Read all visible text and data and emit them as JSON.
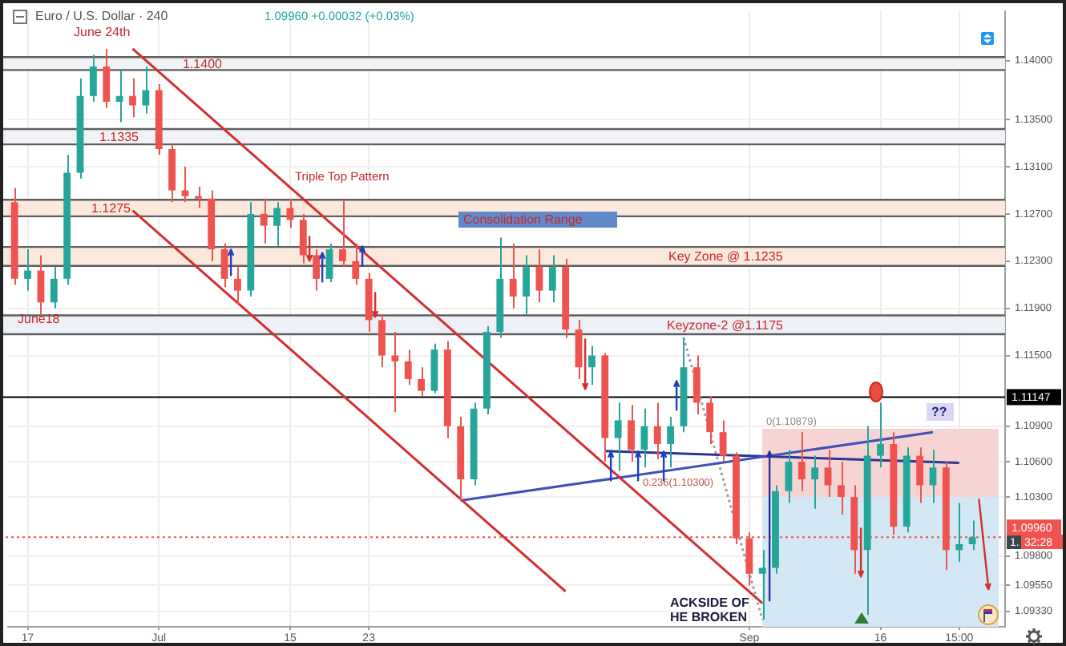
{
  "chart_data": {
    "type": "candlestick",
    "title": "Euro / U.S. Dollar · 240",
    "subtitle": "1.09960 +0.00032 (+0.03%)",
    "categories": [
      null,
      "17",
      null,
      null,
      null,
      null,
      null,
      null,
      null,
      null,
      null,
      "Jul",
      null,
      null,
      null,
      null,
      null,
      null,
      null,
      null,
      null,
      "15",
      null,
      null,
      null,
      null,
      null,
      "23",
      null,
      null,
      null,
      null,
      null,
      null,
      null,
      null,
      null,
      null,
      null,
      null,
      null,
      null,
      null,
      null,
      null,
      null,
      null,
      null,
      null,
      null,
      null,
      null,
      null,
      null,
      null,
      null,
      "Sep",
      null,
      null,
      null,
      null,
      null,
      null,
      null,
      null,
      null,
      "16",
      null,
      null,
      null,
      null,
      null,
      "15:00",
      null,
      null,
      null
    ],
    "ohlc": [
      [
        1.128,
        1.1292,
        1.121,
        1.1215
      ],
      [
        1.1215,
        1.124,
        1.1205,
        1.1222
      ],
      [
        1.1222,
        1.1235,
        1.1185,
        1.1195
      ],
      [
        1.1195,
        1.1225,
        1.119,
        1.1215
      ],
      [
        1.1215,
        1.132,
        1.121,
        1.1305
      ],
      [
        1.1305,
        1.1385,
        1.13,
        1.137
      ],
      [
        1.137,
        1.1405,
        1.1365,
        1.1395
      ],
      [
        1.1395,
        1.141,
        1.136,
        1.1365
      ],
      [
        1.1365,
        1.1392,
        1.1348,
        1.137
      ],
      [
        1.137,
        1.1385,
        1.1352,
        1.1362
      ],
      [
        1.1362,
        1.1395,
        1.1355,
        1.1375
      ],
      [
        1.1375,
        1.138,
        1.132,
        1.1325
      ],
      [
        1.1325,
        1.133,
        1.128,
        1.129
      ],
      [
        1.129,
        1.131,
        1.128,
        1.1285
      ],
      [
        1.1285,
        1.1293,
        1.1275,
        1.1283
      ],
      [
        1.1283,
        1.129,
        1.123,
        1.124
      ],
      [
        1.124,
        1.1245,
        1.1208,
        1.1215
      ],
      [
        1.1215,
        1.1225,
        1.1193,
        1.1205
      ],
      [
        1.1205,
        1.128,
        1.12,
        1.127
      ],
      [
        1.127,
        1.1283,
        1.1245,
        1.126
      ],
      [
        1.126,
        1.128,
        1.1243,
        1.1275
      ],
      [
        1.1275,
        1.1283,
        1.1258,
        1.1265
      ],
      [
        1.1265,
        1.127,
        1.1228,
        1.1235
      ],
      [
        1.1235,
        1.124,
        1.1205,
        1.1215
      ],
      [
        1.1215,
        1.1245,
        1.1212,
        1.124
      ],
      [
        1.124,
        1.1282,
        1.1225,
        1.123
      ],
      [
        1.123,
        1.1245,
        1.121,
        1.1215
      ],
      [
        1.1215,
        1.122,
        1.117,
        1.118
      ],
      [
        1.118,
        1.1185,
        1.114,
        1.115
      ],
      [
        1.115,
        1.117,
        1.1102,
        1.1145
      ],
      [
        1.1145,
        1.1155,
        1.1125,
        1.113
      ],
      [
        1.113,
        1.114,
        1.1115,
        1.112
      ],
      [
        1.112,
        1.116,
        1.1118,
        1.1155
      ],
      [
        1.1155,
        1.1162,
        1.108,
        1.109
      ],
      [
        1.109,
        1.1098,
        1.1027,
        1.1045
      ],
      [
        1.1045,
        1.111,
        1.104,
        1.1105
      ],
      [
        1.1105,
        1.1175,
        1.11,
        1.117
      ],
      [
        1.117,
        1.125,
        1.1165,
        1.1215
      ],
      [
        1.1215,
        1.1245,
        1.119,
        1.12
      ],
      [
        1.12,
        1.1235,
        1.1185,
        1.1225
      ],
      [
        1.1225,
        1.124,
        1.1195,
        1.1205
      ],
      [
        1.1205,
        1.1235,
        1.1195,
        1.1225
      ],
      [
        1.1225,
        1.1232,
        1.1165,
        1.1172
      ],
      [
        1.1172,
        1.118,
        1.113,
        1.114
      ],
      [
        1.114,
        1.1158,
        1.1125,
        1.115
      ],
      [
        1.115,
        1.1152,
        1.106,
        1.108
      ],
      [
        1.108,
        1.111,
        1.1052,
        1.1095
      ],
      [
        1.1095,
        1.1108,
        1.106,
        1.107
      ],
      [
        1.107,
        1.1105,
        1.1055,
        1.109
      ],
      [
        1.109,
        1.111,
        1.1062,
        1.1075
      ],
      [
        1.1075,
        1.1098,
        1.1055,
        1.109
      ],
      [
        1.109,
        1.1165,
        1.1085,
        1.114
      ],
      [
        1.114,
        1.115,
        1.11,
        1.111
      ],
      [
        1.111,
        1.1115,
        1.1075,
        1.1085
      ],
      [
        1.1085,
        1.1095,
        1.106,
        1.1065
      ],
      [
        1.1065,
        1.1068,
        1.099,
        1.0995
      ],
      [
        1.0995,
        1.1,
        1.0955,
        1.0965
      ],
      [
        1.0965,
        1.0985,
        1.0926,
        1.097
      ],
      [
        1.097,
        1.104,
        1.0965,
        1.1035
      ],
      [
        1.1035,
        1.107,
        1.1025,
        1.106
      ],
      [
        1.106,
        1.1085,
        1.1035,
        1.1045
      ],
      [
        1.1045,
        1.1065,
        1.102,
        1.1055
      ],
      [
        1.1055,
        1.107,
        1.103,
        1.104
      ],
      [
        1.104,
        1.106,
        1.1015,
        1.103
      ],
      [
        1.103,
        1.104,
        1.0965,
        1.0985
      ],
      [
        1.0985,
        1.109,
        1.093,
        1.1065
      ],
      [
        1.1065,
        1.111,
        1.1055,
        1.1075
      ],
      [
        1.1075,
        1.1085,
        1.0998,
        1.1005
      ],
      [
        1.1005,
        1.1072,
        1.1,
        1.1065
      ],
      [
        1.1065,
        1.1072,
        1.1025,
        1.104
      ],
      [
        1.104,
        1.107,
        1.1025,
        1.1055
      ],
      [
        1.1055,
        1.106,
        1.0968,
        1.0985
      ],
      [
        1.0985,
        1.1025,
        1.0975,
        1.099
      ],
      [
        1.099,
        1.101,
        1.0985,
        1.0996
      ],
      null,
      null
    ],
    "colors": [
      "#ef5350",
      "#26a69a",
      "#ef5350",
      "#26a69a",
      "#26a69a",
      "#26a69a",
      "#26a69a",
      "#ef5350",
      "#26a69a",
      "#ef5350",
      "#26a69a",
      "#ef5350",
      "#ef5350",
      "#ef5350",
      "#ef5350",
      "#ef5350",
      "#ef5350",
      "#ef5350",
      "#26a69a",
      "#ef5350",
      "#26a69a",
      "#ef5350",
      "#ef5350",
      "#ef5350",
      "#26a69a",
      "#ef5350",
      "#ef5350",
      "#ef5350",
      "#ef5350",
      "#ef5350",
      "#ef5350",
      "#ef5350",
      "#26a69a",
      "#ef5350",
      "#ef5350",
      "#26a69a",
      "#26a69a",
      "#26a69a",
      "#ef5350",
      "#26a69a",
      "#ef5350",
      "#26a69a",
      "#ef5350",
      "#ef5350",
      "#26a69a",
      "#ef5350",
      "#26a69a",
      "#ef5350",
      "#26a69a",
      "#ef5350",
      "#26a69a",
      "#26a69a",
      "#ef5350",
      "#ef5350",
      "#ef5350",
      "#ef5350",
      "#ef5350",
      "#26a69a",
      "#26a69a",
      "#26a69a",
      "#ef5350",
      "#26a69a",
      "#ef5350",
      "#ef5350",
      "#ef5350",
      "#26a69a",
      "#26a69a",
      "#ef5350",
      "#26a69a",
      "#ef5350",
      "#26a69a",
      "#ef5350",
      "#26a69a",
      "#26a69a",
      null,
      null
    ],
    "series": [
      {
        "type": "area",
        "color": "#f7d4d4",
        "values": [
          null,
          null,
          null,
          null,
          null,
          null,
          null,
          null,
          null,
          null,
          null,
          null,
          null,
          null,
          null,
          null,
          null,
          null,
          null,
          null,
          null,
          null,
          null,
          null,
          null,
          null,
          null,
          null,
          null,
          null,
          null,
          null,
          null,
          null,
          null,
          null,
          null,
          null,
          null,
          null,
          null,
          null,
          null,
          null,
          null,
          null,
          null,
          null,
          null,
          null,
          null,
          null,
          null,
          null,
          null,
          null,
          null,
          1.10879,
          null,
          null,
          null,
          null,
          null,
          null,
          null,
          null,
          null,
          null,
          null,
          null,
          null,
          null,
          null,
          null,
          null,
          1.10879
        ]
      },
      {
        "type": "area",
        "color": "#d3e8f4",
        "values": [
          null,
          null,
          null,
          null,
          null,
          null,
          null,
          null,
          null,
          null,
          null,
          null,
          null,
          null,
          null,
          null,
          null,
          null,
          null,
          null,
          null,
          null,
          null,
          null,
          null,
          null,
          null,
          null,
          null,
          null,
          null,
          null,
          null,
          null,
          null,
          null,
          null,
          null,
          null,
          null,
          null,
          null,
          null,
          null,
          null,
          null,
          null,
          null,
          null,
          null,
          null,
          null,
          null,
          null,
          null,
          null,
          null,
          1.103,
          null,
          null,
          null,
          null,
          null,
          null,
          null,
          null,
          null,
          null,
          null,
          null,
          null,
          null,
          null,
          null,
          null,
          1.103
        ]
      },
      {
        "type": "line",
        "color": "#d32f2f",
        "values": [
          null,
          null,
          null,
          null,
          null,
          null,
          null,
          null,
          null,
          1.141,
          null,
          null,
          null,
          null,
          null,
          null,
          null,
          null,
          null,
          null,
          null,
          null,
          null,
          null,
          null,
          null,
          null,
          null,
          null,
          null,
          null,
          null,
          null,
          null,
          null,
          null,
          null,
          null,
          null,
          null,
          null,
          null,
          null,
          null,
          null,
          null,
          null,
          null,
          null,
          null,
          null,
          null,
          null,
          null,
          null,
          null,
          null,
          1.094,
          null,
          null,
          null,
          null,
          null,
          null,
          null,
          null,
          null,
          null,
          null,
          null,
          null,
          null,
          null,
          null,
          null,
          null
        ]
      },
      {
        "type": "line",
        "color": "#d32f2f",
        "values": [
          null,
          null,
          null,
          null,
          null,
          null,
          null,
          null,
          null,
          1.1273,
          null,
          null,
          null,
          null,
          null,
          null,
          null,
          null,
          null,
          null,
          null,
          null,
          null,
          null,
          null,
          null,
          null,
          null,
          null,
          null,
          null,
          null,
          null,
          null,
          null,
          null,
          null,
          null,
          null,
          null,
          null,
          null,
          1.095,
          null,
          null,
          null,
          null,
          null,
          null,
          null,
          null,
          null,
          null,
          null,
          null,
          null,
          null,
          null,
          null,
          null,
          null,
          null,
          null,
          null,
          null,
          null,
          null,
          null,
          null,
          null,
          null,
          null,
          null,
          null,
          null,
          null
        ]
      },
      {
        "type": "line",
        "color": "#3f51b5",
        "values": [
          null,
          null,
          null,
          null,
          null,
          null,
          null,
          null,
          null,
          null,
          null,
          null,
          null,
          null,
          null,
          null,
          null,
          null,
          null,
          null,
          null,
          null,
          null,
          null,
          null,
          null,
          null,
          null,
          null,
          null,
          null,
          null,
          null,
          null,
          1.1027,
          null,
          null,
          null,
          null,
          null,
          null,
          null,
          null,
          null,
          null,
          null,
          null,
          null,
          null,
          null,
          null,
          null,
          null,
          null,
          null,
          null,
          null,
          null,
          null,
          null,
          null,
          null,
          null,
          null,
          null,
          null,
          null,
          null,
          null,
          null,
          1.1085,
          null,
          null,
          null,
          null,
          null
        ]
      },
      {
        "type": "line",
        "color": "#283593",
        "values": [
          null,
          null,
          null,
          null,
          null,
          null,
          null,
          null,
          null,
          null,
          null,
          null,
          null,
          null,
          null,
          null,
          null,
          null,
          null,
          null,
          null,
          null,
          null,
          null,
          null,
          null,
          null,
          null,
          null,
          null,
          null,
          null,
          null,
          null,
          null,
          null,
          null,
          null,
          null,
          null,
          null,
          null,
          null,
          null,
          null,
          1.1069,
          null,
          null,
          null,
          null,
          null,
          null,
          null,
          null,
          null,
          null,
          null,
          null,
          null,
          null,
          null,
          null,
          null,
          null,
          null,
          null,
          null,
          null,
          null,
          null,
          null,
          null,
          1.1059,
          null,
          null,
          null
        ]
      },
      {
        "type": "line",
        "color": "#9e9e9e",
        "line_style": "dotted",
        "values": [
          null,
          null,
          null,
          null,
          null,
          null,
          null,
          null,
          null,
          null,
          null,
          null,
          null,
          null,
          null,
          null,
          null,
          null,
          null,
          null,
          null,
          null,
          null,
          null,
          null,
          null,
          null,
          null,
          null,
          null,
          null,
          null,
          null,
          null,
          null,
          null,
          null,
          null,
          null,
          null,
          null,
          null,
          null,
          null,
          null,
          null,
          null,
          null,
          null,
          null,
          null,
          1.1165,
          null,
          null,
          null,
          null,
          null,
          1.0926,
          null,
          null,
          null,
          null,
          null,
          null,
          null,
          null,
          null,
          null,
          null,
          null,
          null,
          null,
          null,
          null,
          null,
          null
        ]
      }
    ],
    "ylim": [
      1.092,
      1.1442
    ],
    "yticks": [
      {
        "value": 1.14,
        "label": "1.14000"
      },
      {
        "value": 1.135,
        "label": "1.13500"
      },
      {
        "value": 1.131,
        "label": "1.13100"
      },
      {
        "value": 1.127,
        "label": "1.12700"
      },
      {
        "value": 1.123,
        "label": "1.12300"
      },
      {
        "value": 1.119,
        "label": "1.11900"
      },
      {
        "value": 1.115,
        "label": "1.11500"
      },
      {
        "value": 1.109,
        "label": "1.10900"
      },
      {
        "value": 1.106,
        "label": "1.10600"
      },
      {
        "value": 1.103,
        "label": "1.10300"
      },
      {
        "value": 1.098,
        "label": "1.09800"
      },
      {
        "value": 1.0955,
        "label": "1.09550"
      },
      {
        "value": 1.0933,
        "label": "1.09330"
      }
    ],
    "bands": [
      {
        "axis": "y",
        "from": 1.1392,
        "to": 1.1403,
        "label": "1.1400",
        "color": "#f1f2f5"
      },
      {
        "axis": "y",
        "from": 1.1329,
        "to": 1.1342,
        "label": "1.1335",
        "color": "#f1f2f5"
      },
      {
        "axis": "y",
        "from": 1.1268,
        "to": 1.1282,
        "label": "1.1275",
        "color": "#fce9dd"
      },
      {
        "axis": "y",
        "from": 1.1226,
        "to": 1.1242,
        "label": "Key Zone @ 1.1235",
        "color": "#fce9dd"
      },
      {
        "axis": "y",
        "from": 1.1168,
        "to": 1.1184,
        "label": "Keyzone-2 @1.1175",
        "color": "#eef0f8"
      }
    ],
    "ref_lines": [
      {
        "axis": "y",
        "value": 1.11147,
        "label": "1.11147",
        "color": "#000000"
      },
      {
        "axis": "y",
        "value": 1.0996,
        "label": "1.09960",
        "color": "#ef5350",
        "line_style": "dotted"
      }
    ],
    "annotations": [
      "June 24th",
      "June18",
      "Triple Top Pattern",
      "Consolidation Range",
      {
        "text": "0(1.10879)",
        "y": 1.10879
      },
      "0.236(1.10300)",
      "??",
      "ACKSIDE OF",
      "HE BROKEN",
      "1.",
      "32:28"
    ],
    "grid": true,
    "marker": "none"
  }
}
